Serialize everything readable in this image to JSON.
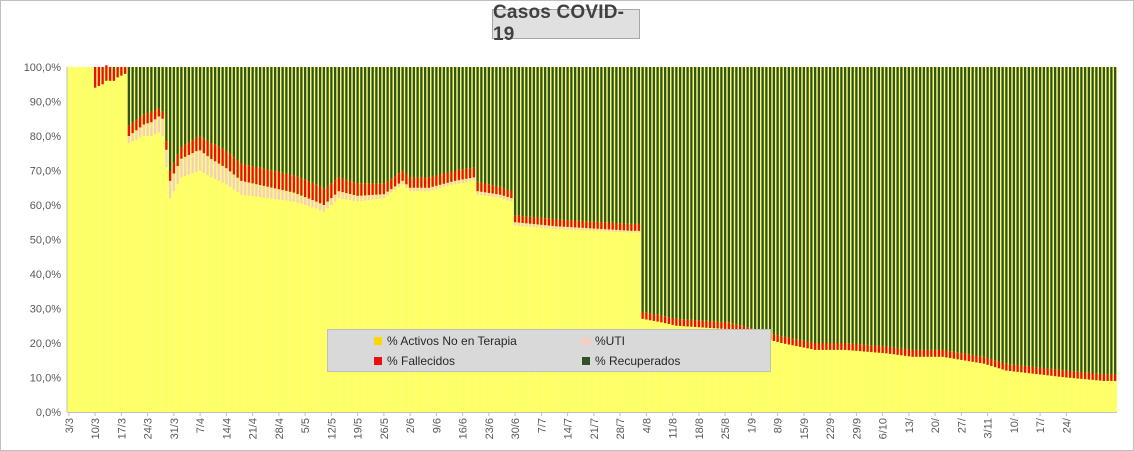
{
  "title": "Casos  COVID-19",
  "colors": {
    "activos": "#ffff66",
    "activos_border": "#e6d200",
    "uti": "#f4cfc0",
    "fallecidos": "#e81010",
    "recuperados": "#2f5323",
    "recuperados_stripe": "#ffff66"
  },
  "legend": {
    "activos": "% Activos No en Terapia",
    "uti": "%UTI",
    "fallecidos": "% Fallecidos",
    "recuperados": "% Recuperados"
  },
  "chart_data": {
    "type": "bar",
    "stacked": true,
    "percent_stacked": true,
    "title": "Casos  COVID-19",
    "ylim": [
      0,
      100
    ],
    "y_ticks": [
      "0,0%",
      "10,0%",
      "20,0%",
      "30,0%",
      "40,0%",
      "50,0%",
      "60,0%",
      "70,0%",
      "80,0%",
      "90,0%",
      "100,0%"
    ],
    "x_tick_labels": [
      "3/3",
      "10/3",
      "17/3",
      "24/3",
      "31/3",
      "7/4",
      "14/4",
      "21/4",
      "28/4",
      "5/5",
      "12/5",
      "19/5",
      "26/5",
      "2/6",
      "9/6",
      "16/6",
      "23/6",
      "30/6",
      "7/7",
      "14/7",
      "21/7",
      "28/7",
      "4/8",
      "11/8",
      "18/8",
      "25/8",
      "1/9",
      "8/9",
      "15/9",
      "22/9",
      "29/9",
      "6/10",
      "13/",
      "20/",
      "27/",
      "3/11",
      "10/",
      "17/",
      "24/"
    ],
    "days_per_tick": 7,
    "grid": false,
    "legend_position": "bottom-center",
    "series_order": [
      "% Activos No en Terapia",
      "%UTI",
      "% Fallecidos",
      "% Recuperados"
    ],
    "activos_keypoints": [
      [
        0,
        100
      ],
      [
        6,
        100
      ],
      [
        7,
        94
      ],
      [
        9,
        95
      ],
      [
        10,
        96
      ],
      [
        12,
        96
      ],
      [
        13,
        97
      ],
      [
        15,
        98
      ],
      [
        16,
        78
      ],
      [
        18,
        79
      ],
      [
        20,
        80
      ],
      [
        22,
        80
      ],
      [
        24,
        81
      ],
      [
        25,
        80
      ],
      [
        27,
        62
      ],
      [
        30,
        68
      ],
      [
        35,
        70
      ],
      [
        38,
        68
      ],
      [
        42,
        66
      ],
      [
        46,
        63
      ],
      [
        53,
        62
      ],
      [
        60,
        61
      ],
      [
        66,
        59
      ],
      [
        68,
        58
      ],
      [
        72,
        62
      ],
      [
        77,
        61
      ],
      [
        84,
        62
      ],
      [
        89,
        66
      ],
      [
        91,
        64
      ],
      [
        96,
        64
      ],
      [
        103,
        66
      ],
      [
        108,
        67
      ],
      [
        109,
        63
      ],
      [
        115,
        62
      ],
      [
        118,
        61
      ],
      [
        119,
        54
      ],
      [
        130,
        53
      ],
      [
        150,
        52
      ],
      [
        152,
        52
      ],
      [
        153,
        27
      ],
      [
        158,
        26
      ],
      [
        162,
        25
      ],
      [
        176,
        24
      ],
      [
        183,
        22
      ],
      [
        190,
        20
      ],
      [
        199,
        18
      ],
      [
        207,
        18
      ],
      [
        218,
        17
      ],
      [
        225,
        16
      ],
      [
        233,
        16
      ],
      [
        244,
        14
      ],
      [
        250,
        12
      ],
      [
        258,
        11
      ],
      [
        266,
        10
      ],
      [
        276,
        9
      ],
      [
        279,
        9
      ]
    ],
    "uti_keypoints": [
      [
        0,
        0
      ],
      [
        15,
        0
      ],
      [
        16,
        2
      ],
      [
        22,
        4
      ],
      [
        25,
        5
      ],
      [
        27,
        5
      ],
      [
        34,
        6
      ],
      [
        40,
        5
      ],
      [
        46,
        4
      ],
      [
        56,
        3
      ],
      [
        66,
        2
      ],
      [
        72,
        2
      ],
      [
        86,
        1
      ],
      [
        105,
        1
      ],
      [
        119,
        1
      ],
      [
        152,
        0.5
      ],
      [
        153,
        0
      ],
      [
        279,
        0
      ]
    ],
    "fallecidos_keypoints": [
      [
        0,
        0
      ],
      [
        6,
        0
      ],
      [
        7,
        6
      ],
      [
        15,
        2
      ],
      [
        16,
        3
      ],
      [
        22,
        3
      ],
      [
        25,
        2
      ],
      [
        27,
        3
      ],
      [
        35,
        4
      ],
      [
        40,
        5
      ],
      [
        46,
        5
      ],
      [
        60,
        5
      ],
      [
        66,
        5
      ],
      [
        72,
        4
      ],
      [
        86,
        3
      ],
      [
        105,
        3
      ],
      [
        119,
        2
      ],
      [
        152,
        2
      ],
      [
        153,
        2
      ],
      [
        175,
        2
      ],
      [
        279,
        2
      ]
    ],
    "recuperados": "remainder to 100%"
  }
}
